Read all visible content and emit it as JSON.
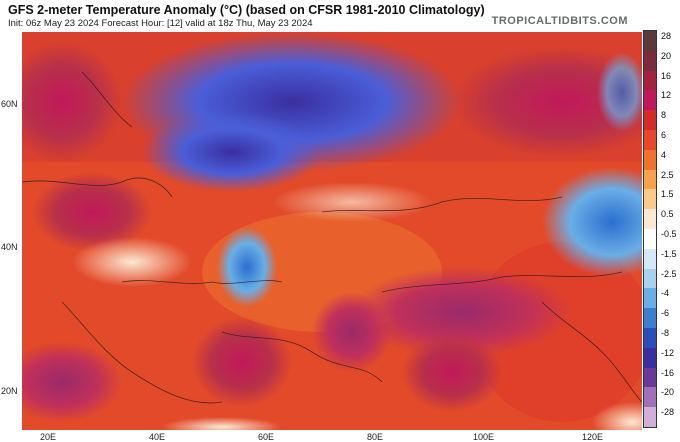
{
  "title": "GFS 2-meter Temperature Anomaly (°C) (based on CFSR 1981-2010 Climatology)",
  "subtitle": "Init: 06z May 23 2024   Forecast Hour: [12]   valid at 18z Thu, May 23 2024",
  "brand": "TROPICALTIDBITS.COM",
  "lat_labels": [
    "60N",
    "40N",
    "20N"
  ],
  "lon_labels": [
    "20E",
    "40E",
    "60E",
    "80E",
    "100E",
    "120E"
  ],
  "colorbar": {
    "labels": [
      "28",
      "20",
      "16",
      "12",
      "8",
      "6",
      "4",
      "2.5",
      "1.5",
      "0.5",
      "-0.5",
      "-1.5",
      "-2.5",
      "-4",
      "-6",
      "-8",
      "-12",
      "-16",
      "-20",
      "-28"
    ],
    "colors": [
      "#5a3a3a",
      "#7b2b3b",
      "#a3223e",
      "#c2185b",
      "#d42a2a",
      "#e8472a",
      "#f0722d",
      "#f7a14a",
      "#fbc98a",
      "#fde9d3",
      "#ffffff",
      "#d4e8f7",
      "#a9d0ef",
      "#6aaee6",
      "#3b7fd0",
      "#2a4fbb",
      "#3a2fa0",
      "#6a3a9a",
      "#a070b8",
      "#d0b0d8"
    ]
  }
}
